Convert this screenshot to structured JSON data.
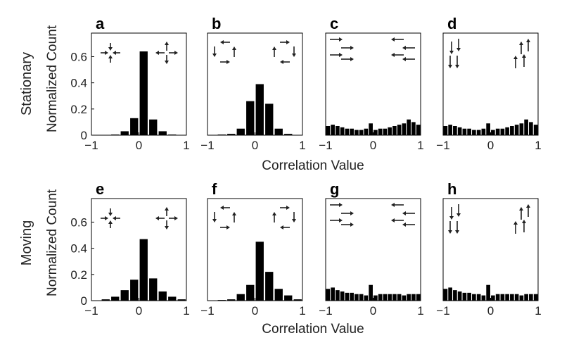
{
  "figure": {
    "rows": [
      {
        "label": "Stationary",
        "ylabel": "Normalized Count",
        "xlabel": "Correlation Value"
      },
      {
        "label": "Moving",
        "ylabel": "Normalized Count",
        "xlabel": "Correlation Value"
      }
    ]
  },
  "chart_data": [
    {
      "type": "bar",
      "panel": "a",
      "pattern": "radial",
      "x": [
        -0.9,
        -0.7,
        -0.5,
        -0.3,
        -0.1,
        0.1,
        0.3,
        0.5,
        0.7,
        0.9
      ],
      "values": [
        0,
        0,
        0.005,
        0.03,
        0.13,
        0.64,
        0.12,
        0.03,
        0.005,
        0
      ],
      "xlim": [
        -1,
        1
      ],
      "ylim": [
        0,
        0.78
      ],
      "xticks": [
        "−1",
        "0",
        "1"
      ],
      "yticks": [
        "0",
        "0.2",
        "0.4",
        "0.6"
      ],
      "ytick_values": [
        0,
        0.2,
        0.4,
        0.6
      ]
    },
    {
      "type": "bar",
      "panel": "b",
      "pattern": "rotational",
      "x": [
        -0.9,
        -0.7,
        -0.5,
        -0.3,
        -0.1,
        0.1,
        0.3,
        0.5,
        0.7,
        0.9
      ],
      "values": [
        0,
        0.005,
        0.01,
        0.05,
        0.26,
        0.39,
        0.24,
        0.05,
        0.01,
        0
      ],
      "xlim": [
        -1,
        1
      ],
      "ylim": [
        0,
        0.78
      ],
      "xticks": [
        "−1",
        "0",
        "1"
      ]
    },
    {
      "type": "bar",
      "panel": "c",
      "pattern": "horizontal",
      "x": [
        -0.95,
        -0.85,
        -0.75,
        -0.65,
        -0.55,
        -0.45,
        -0.35,
        -0.25,
        -0.15,
        -0.05,
        0.05,
        0.15,
        0.25,
        0.35,
        0.45,
        0.55,
        0.65,
        0.75,
        0.85,
        0.95
      ],
      "values": [
        0.07,
        0.08,
        0.07,
        0.06,
        0.05,
        0.05,
        0.04,
        0.04,
        0.05,
        0.09,
        0.04,
        0.05,
        0.05,
        0.06,
        0.07,
        0.08,
        0.09,
        0.12,
        0.1,
        0.08
      ],
      "xlim": [
        -1,
        1
      ],
      "ylim": [
        0,
        0.78
      ],
      "xticks": [
        "−1",
        "0",
        "1"
      ]
    },
    {
      "type": "bar",
      "panel": "d",
      "pattern": "vertical",
      "x": [
        -0.95,
        -0.85,
        -0.75,
        -0.65,
        -0.55,
        -0.45,
        -0.35,
        -0.25,
        -0.15,
        -0.05,
        0.05,
        0.15,
        0.25,
        0.35,
        0.45,
        0.55,
        0.65,
        0.75,
        0.85,
        0.95
      ],
      "values": [
        0.07,
        0.08,
        0.07,
        0.06,
        0.05,
        0.05,
        0.04,
        0.04,
        0.05,
        0.09,
        0.04,
        0.05,
        0.05,
        0.06,
        0.07,
        0.08,
        0.09,
        0.12,
        0.1,
        0.08
      ],
      "xlim": [
        -1,
        1
      ],
      "ylim": [
        0,
        0.78
      ],
      "xticks": [
        "−1",
        "0",
        "1"
      ]
    },
    {
      "type": "bar",
      "panel": "e",
      "pattern": "radial",
      "x": [
        -0.9,
        -0.7,
        -0.5,
        -0.3,
        -0.1,
        0.1,
        0.3,
        0.5,
        0.7,
        0.9
      ],
      "values": [
        0,
        0.01,
        0.03,
        0.08,
        0.16,
        0.47,
        0.17,
        0.07,
        0.03,
        0.01
      ],
      "xlim": [
        -1,
        1
      ],
      "ylim": [
        0,
        0.78
      ],
      "xticks": [
        "−1",
        "0",
        "1"
      ],
      "yticks": [
        "0",
        "0.2",
        "0.4",
        "0.6"
      ],
      "ytick_values": [
        0,
        0.2,
        0.4,
        0.6
      ]
    },
    {
      "type": "bar",
      "panel": "f",
      "pattern": "rotational",
      "x": [
        -0.9,
        -0.7,
        -0.5,
        -0.3,
        -0.1,
        0.1,
        0.3,
        0.5,
        0.7,
        0.9
      ],
      "values": [
        0,
        0.005,
        0.01,
        0.05,
        0.12,
        0.45,
        0.22,
        0.09,
        0.04,
        0.01
      ],
      "xlim": [
        -1,
        1
      ],
      "ylim": [
        0,
        0.78
      ],
      "xticks": [
        "−1",
        "0",
        "1"
      ]
    },
    {
      "type": "bar",
      "panel": "g",
      "pattern": "horizontal",
      "x": [
        -0.95,
        -0.85,
        -0.75,
        -0.65,
        -0.55,
        -0.45,
        -0.35,
        -0.25,
        -0.15,
        -0.05,
        0.05,
        0.15,
        0.25,
        0.35,
        0.45,
        0.55,
        0.65,
        0.75,
        0.85,
        0.95
      ],
      "values": [
        0.09,
        0.1,
        0.08,
        0.07,
        0.06,
        0.06,
        0.05,
        0.05,
        0.04,
        0.12,
        0.04,
        0.05,
        0.05,
        0.05,
        0.05,
        0.05,
        0.04,
        0.05,
        0.05,
        0.05
      ],
      "xlim": [
        -1,
        1
      ],
      "ylim": [
        0,
        0.78
      ],
      "xticks": [
        "−1",
        "0",
        "1"
      ]
    },
    {
      "type": "bar",
      "panel": "h",
      "pattern": "vertical",
      "x": [
        -0.95,
        -0.85,
        -0.75,
        -0.65,
        -0.55,
        -0.45,
        -0.35,
        -0.25,
        -0.15,
        -0.05,
        0.05,
        0.15,
        0.25,
        0.35,
        0.45,
        0.55,
        0.65,
        0.75,
        0.85,
        0.95
      ],
      "values": [
        0.09,
        0.1,
        0.08,
        0.07,
        0.06,
        0.06,
        0.05,
        0.05,
        0.04,
        0.12,
        0.04,
        0.05,
        0.05,
        0.05,
        0.05,
        0.05,
        0.04,
        0.05,
        0.05,
        0.05
      ],
      "xlim": [
        -1,
        1
      ],
      "ylim": [
        0,
        0.78
      ],
      "xticks": [
        "−1",
        "0",
        "1"
      ]
    }
  ]
}
